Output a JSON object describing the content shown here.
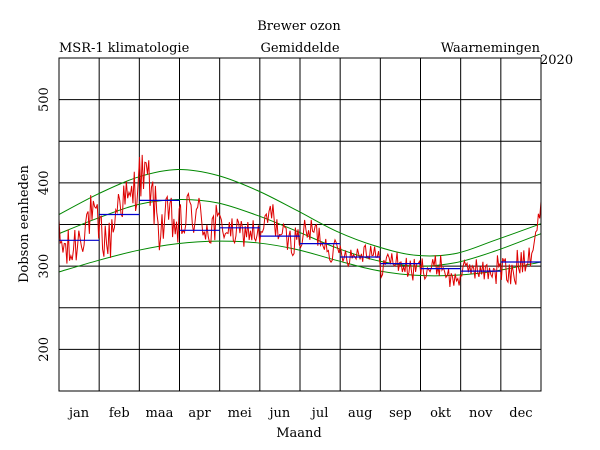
{
  "chart_data": {
    "type": "line",
    "title": "Brewer ozon",
    "xlabel": "Maand",
    "ylabel": "Dobson eenheden",
    "ylim": [
      150,
      550
    ],
    "yticks": [
      200,
      300,
      400,
      500
    ],
    "months": [
      "jan",
      "feb",
      "maa",
      "apr",
      "mei",
      "jun",
      "jul",
      "aug",
      "sep",
      "okt",
      "nov",
      "dec"
    ],
    "year_label": "2020",
    "grid": true,
    "legend": {
      "climatology": {
        "label": "MSR-1 klimatologie",
        "color": "#008800"
      },
      "monthly_mean": {
        "label": "Gemiddelde",
        "color": "#0000cc"
      },
      "observations": {
        "label": "Waarnemingen",
        "color": "#dd0000"
      }
    },
    "climatology": {
      "day": [
        0,
        30,
        60,
        90,
        120,
        150,
        180,
        210,
        240,
        270,
        300,
        330,
        365
      ],
      "mean": [
        339,
        358,
        374,
        380,
        376,
        361,
        342,
        322,
        307,
        300,
        304,
        318,
        339
      ],
      "lower": [
        293,
        307,
        319,
        327,
        330,
        328,
        320,
        307,
        295,
        289,
        289,
        294,
        305
      ],
      "upper": [
        362,
        387,
        407,
        416,
        409,
        391,
        367,
        342,
        324,
        313,
        315,
        331,
        351
      ]
    },
    "monthly_mean": [
      331,
      362,
      379,
      343,
      346,
      336,
      327,
      311,
      303,
      297,
      294,
      305
    ],
    "observations_sample": {
      "day": [
        0,
        8,
        15,
        23,
        31,
        38,
        46,
        53,
        61,
        68,
        76,
        84,
        91,
        99,
        107,
        114,
        122,
        130,
        137,
        145,
        153,
        160,
        168,
        175,
        183,
        191,
        198,
        206,
        213,
        221,
        229,
        236,
        244,
        252,
        259,
        267,
        275,
        282,
        290,
        297,
        305,
        313,
        320,
        328,
        335,
        343,
        351,
        358,
        365
      ],
      "value": [
        330,
        313,
        335,
        360,
        342,
        327,
        386,
        373,
        410,
        403,
        346,
        357,
        342,
        367,
        357,
        346,
        351,
        340,
        339,
        343,
        333,
        366,
        337,
        329,
        335,
        342,
        336,
        318,
        319,
        312,
        318,
        321,
        300,
        309,
        302,
        294,
        299,
        297,
        303,
        282,
        290,
        301,
        292,
        296,
        297,
        286,
        311,
        323,
        359
      ]
    }
  }
}
